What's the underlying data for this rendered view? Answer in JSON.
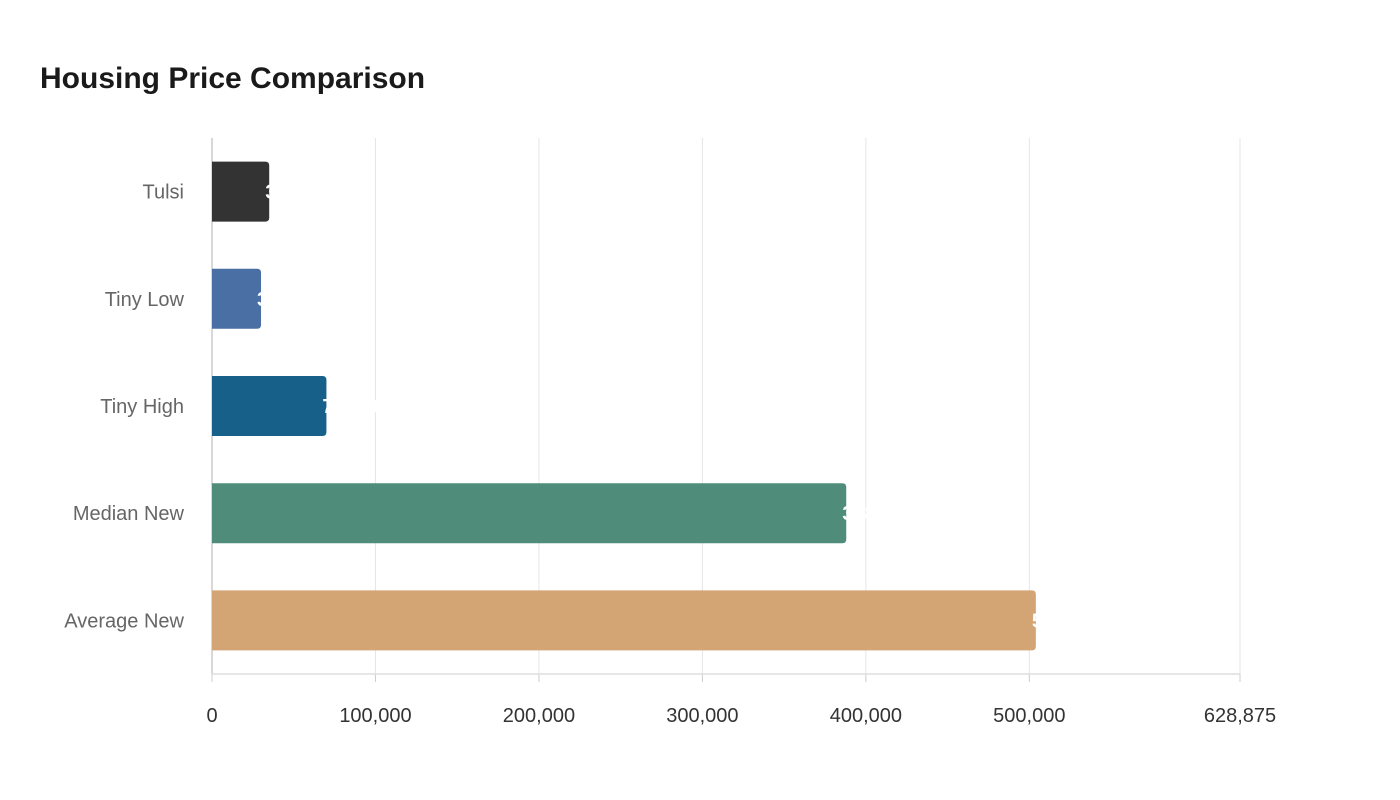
{
  "chart_data": {
    "type": "bar",
    "orientation": "horizontal",
    "title": "Housing Price Comparison",
    "xlabel": "",
    "ylabel": "",
    "categories": [
      "Tulsi",
      "Tiny Low",
      "Tiny High",
      "Median New",
      "Average New"
    ],
    "values": [
      35000,
      30000,
      70000,
      388000,
      504000
    ],
    "colors": [
      "#333333",
      "#4a6fa5",
      "#17608a",
      "#4f8c7a",
      "#d4a574"
    ],
    "xlim": [
      0,
      628875
    ],
    "x_ticks": [
      0,
      100000,
      200000,
      300000,
      400000,
      500000,
      628875
    ],
    "x_tick_labels": [
      "0",
      "100,000",
      "200,000",
      "300,000",
      "400,000",
      "500,000",
      "628,875"
    ],
    "grid": true,
    "legend": "none"
  }
}
